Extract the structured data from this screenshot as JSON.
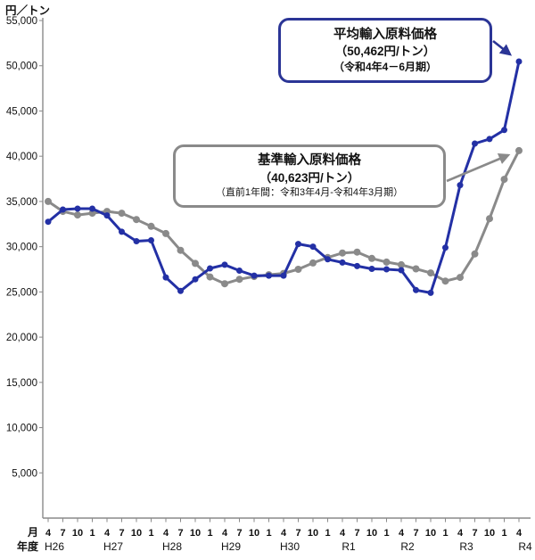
{
  "unit_label": "円／トン",
  "y_axis": {
    "tick_labels": [
      "5,000",
      "10,000",
      "15,000",
      "20,000",
      "25,000",
      "30,000",
      "35,000",
      "40,000",
      "45,000",
      "50,000",
      "55,000"
    ]
  },
  "x_axis": {
    "month_row_label": "月",
    "year_row_label": "年度"
  },
  "annotations": {
    "average": {
      "title": "平均輸入原料価格",
      "value_line": "（50,462円/トン）",
      "period_line": "（令和4年4－6月期）"
    },
    "standard": {
      "title": "基準輸入原料価格",
      "value_line": "（40,623円/トン）",
      "period_line": "（直前1年間：令和3年4月-令和4年3月期）"
    }
  },
  "chart_data": {
    "type": "line",
    "ylabel": "円／トン",
    "ylim": [
      0,
      55000
    ],
    "ytick_step": 5000,
    "ytick_label_min": 5000,
    "grid": false,
    "legend_position": "none",
    "x_month_labels": [
      "4",
      "7",
      "10",
      "1",
      "4",
      "7",
      "10",
      "1",
      "4",
      "7",
      "10",
      "1",
      "4",
      "7",
      "10",
      "1",
      "4",
      "7",
      "10",
      "1",
      "4",
      "7",
      "10",
      "1",
      "4",
      "7",
      "10",
      "1",
      "4",
      "7",
      "10",
      "1",
      "4"
    ],
    "x_year_groups": [
      {
        "label": "H26",
        "start_index": 0
      },
      {
        "label": "H27",
        "start_index": 4
      },
      {
        "label": "H28",
        "start_index": 8
      },
      {
        "label": "H29",
        "start_index": 12
      },
      {
        "label": "H30",
        "start_index": 16
      },
      {
        "label": "R1",
        "start_index": 20
      },
      {
        "label": "R2",
        "start_index": 24
      },
      {
        "label": "R3",
        "start_index": 28
      },
      {
        "label": "R4",
        "start_index": 32
      }
    ],
    "series": [
      {
        "name": "基準輸入原料価格",
        "color": "#8a8a8a",
        "latest_value": 40623,
        "values": [
          35000,
          33900,
          33500,
          33700,
          33900,
          33700,
          33000,
          32250,
          31450,
          29600,
          28150,
          26650,
          25900,
          26400,
          26700,
          26900,
          27050,
          27500,
          28200,
          28800,
          29300,
          29400,
          28700,
          28300,
          28000,
          27550,
          27100,
          26200,
          26600,
          29200,
          33100,
          37450,
          40623
        ]
      },
      {
        "name": "平均輸入原料価格",
        "color": "#2330a5",
        "latest_value": 50462,
        "values": [
          32750,
          34100,
          34200,
          34200,
          33450,
          31650,
          30600,
          30700,
          26600,
          25100,
          26400,
          27600,
          28000,
          27350,
          26800,
          26800,
          26800,
          30300,
          30000,
          28600,
          28250,
          27850,
          27550,
          27500,
          27400,
          25200,
          24900,
          29900,
          36800,
          41400,
          41900,
          42900,
          50462
        ]
      }
    ]
  }
}
